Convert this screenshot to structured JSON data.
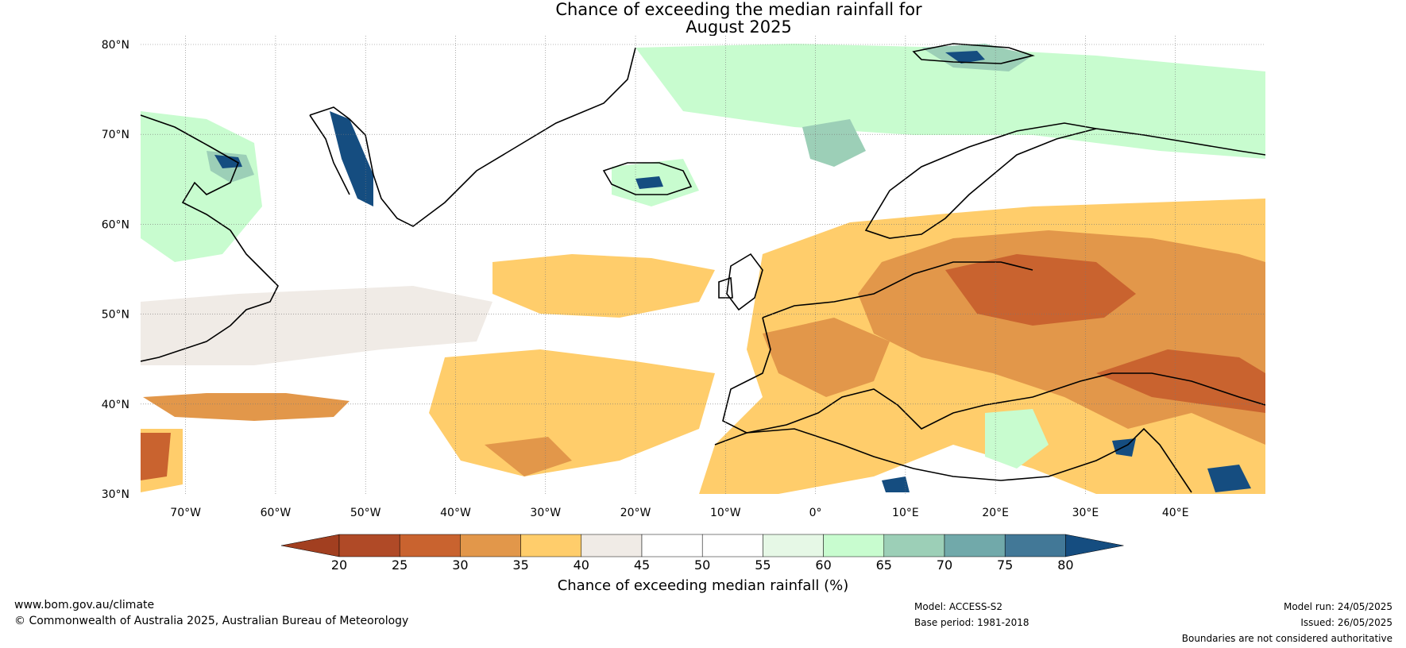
{
  "title": {
    "line1": "Chance of exceeding the median rainfall for",
    "line2": "August 2025"
  },
  "map": {
    "lat_labels": [
      "80°N",
      "70°N",
      "60°N",
      "50°N",
      "40°N",
      "30°N"
    ],
    "lon_labels": [
      "70°W",
      "60°W",
      "50°W",
      "40°W",
      "30°W",
      "20°W",
      "10°W",
      "0°",
      "10°E",
      "20°E",
      "30°E",
      "40°E"
    ],
    "colors": {
      "ocean_neutral": "#ffffff",
      "dry_light": "#ffcd6b",
      "dry_medium": "#e2974a",
      "dry_strong": "#c9632f",
      "wet_light": "#c8fccf",
      "wet_medium": "#9ccfb7",
      "wet_strong": "#154d80",
      "near_median": "#f0ebe6"
    }
  },
  "colorbar": {
    "ticks": [
      "20",
      "25",
      "30",
      "35",
      "40",
      "45",
      "50",
      "55",
      "60",
      "65",
      "70",
      "75",
      "80"
    ],
    "colors": [
      "#a23f20",
      "#b04a27",
      "#c9632f",
      "#e2974a",
      "#ffcd6b",
      "#f0ebe6",
      "#ffffff",
      "#ffffff",
      "#e6f8e6",
      "#c8fccf",
      "#9ccfb7",
      "#71a9aa",
      "#427897",
      "#154d80"
    ],
    "label": "Chance of exceeding median rainfall (%)"
  },
  "footer": {
    "website": "www.bom.gov.au/climate",
    "copyright": "© Commonwealth of Australia 2025, Australian Bureau of Meteorology",
    "model": "Model: ACCESS-S2",
    "base_period": "Base period: 1981-2018",
    "model_run": "Model run: 24/05/2025",
    "issued": "Issued: 26/05/2025",
    "disclaimer": "Boundaries are not considered authoritative"
  }
}
